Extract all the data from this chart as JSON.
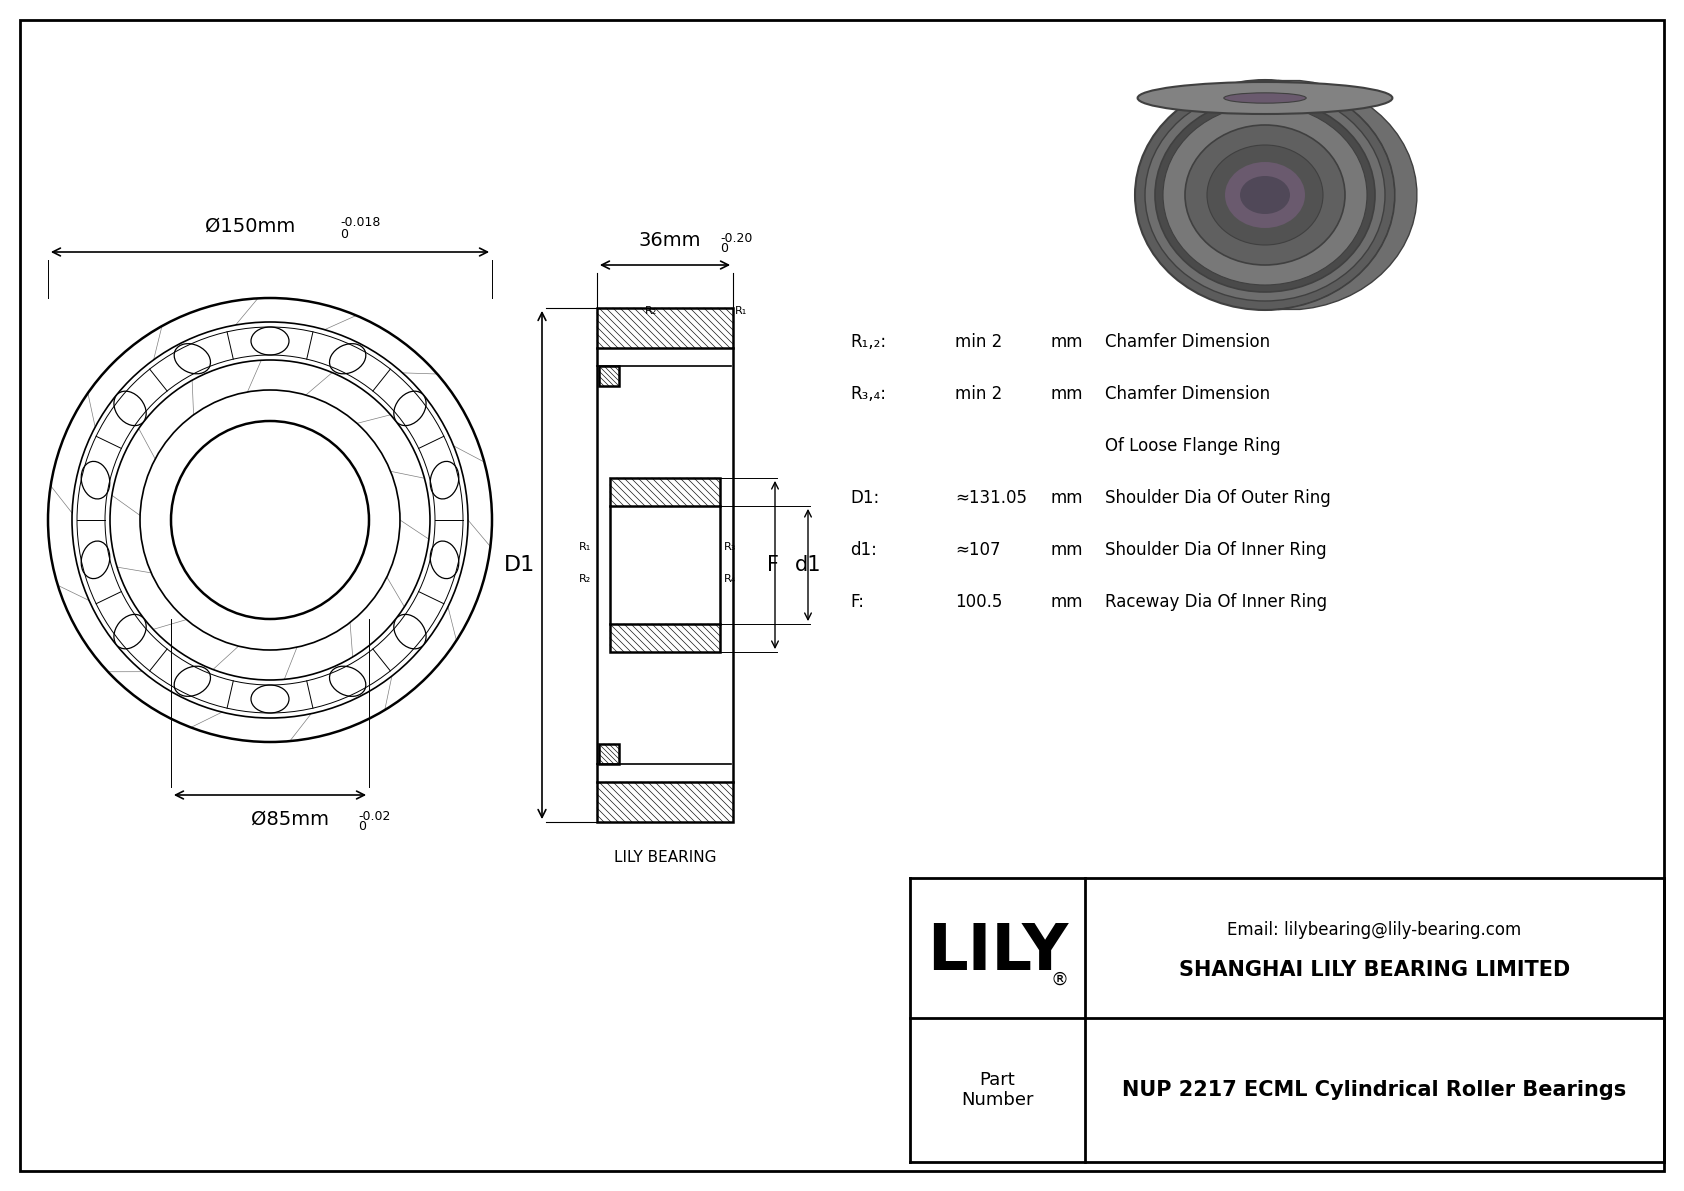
{
  "bg_color": "#ffffff",
  "lc": "#000000",
  "dim_D": "Ø150mm",
  "dim_D_sup": "0",
  "dim_D_tol": "-0.018",
  "dim_d": "Ø85mm",
  "dim_d_sup": "0",
  "dim_d_tol": "-0.02",
  "dim_B": "36mm",
  "dim_B_sup": "0",
  "dim_B_tol": "-0.20",
  "specs": [
    {
      "key": "R₁,₂:",
      "val": "min 2",
      "unit": "mm",
      "desc": "Chamfer Dimension"
    },
    {
      "key": "R₃,₄:",
      "val": "min 2",
      "unit": "mm",
      "desc": "Chamfer Dimension"
    },
    {
      "key": "",
      "val": "",
      "unit": "",
      "desc": "Of Loose Flange Ring"
    },
    {
      "key": "D1:",
      "val": "≈131.05",
      "unit": "mm",
      "desc": "Shoulder Dia Of Outer Ring"
    },
    {
      "key": "d1:",
      "val": "≈107",
      "unit": "mm",
      "desc": "Shoulder Dia Of Inner Ring"
    },
    {
      "key": "F:",
      "val": "100.5",
      "unit": "mm",
      "desc": "Raceway Dia Of Inner Ring"
    }
  ],
  "lily_text": "LILY",
  "company": "SHANGHAI LILY BEARING LIMITED",
  "email": "Email: lilybearing@lily-bearing.com",
  "part_label": "Part\nNumber",
  "part_number": "NUP 2217 ECML Cylindrical Roller Bearings",
  "lily_bearing": "LILY BEARING",
  "label_D1": "D1",
  "label_d1": "d1",
  "label_F": "F",
  "photo_colors": {
    "outer_dark": "#5c5c5c",
    "outer_mid": "#6e6e6e",
    "groove": "#4a4a4a",
    "inner_ring": "#787878",
    "inner_dark": "#606060",
    "bore_outer": "#525252",
    "bore_inner": "#6a5a6e",
    "bore_deep": "#504858",
    "top_face": "#828282",
    "top_inner": "#6a6a6a",
    "separator": "#404040"
  }
}
